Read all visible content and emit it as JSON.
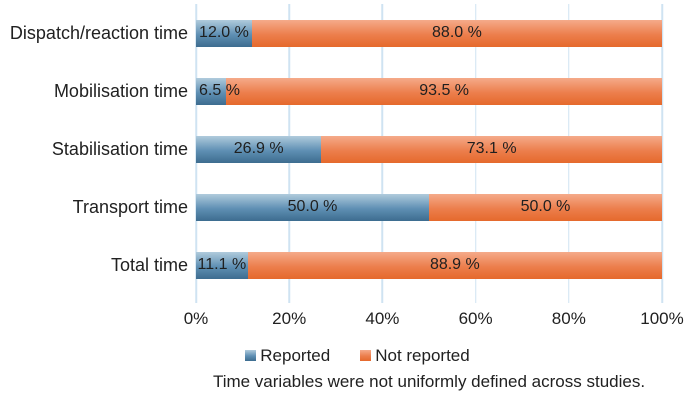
{
  "colors": {
    "blue_top": "#b0cbdc",
    "blue_mid": "#5e8fb3",
    "blue_bottom": "#3d6c8f",
    "orange_top": "#f5aa8a",
    "orange_mid": "#ec7e4c",
    "orange_bottom": "#e5692c",
    "gridline": "#cfe3f2",
    "text": "#212121"
  },
  "chart_data": {
    "type": "bar",
    "orientation": "horizontal",
    "stacked": true,
    "title": "",
    "categories": [
      "Dispatch/reaction time",
      "Mobilisation time",
      "Stabilisation time",
      "Transport time",
      "Total time"
    ],
    "series": [
      {
        "name": "Reported",
        "color": "#5e8fb3",
        "values": [
          12.0,
          6.5,
          26.9,
          50.0,
          11.1
        ],
        "labels": [
          "12.0 %",
          "6.5 %",
          "26.9 %",
          "50.0 %",
          "11.1 %"
        ]
      },
      {
        "name": "Not reported",
        "color": "#e5692c",
        "values": [
          88.0,
          93.5,
          73.1,
          50.0,
          88.9
        ],
        "labels": [
          "88.0 %",
          "93.5 %",
          "73.1 %",
          "50.0 %",
          "88.9 %"
        ]
      }
    ],
    "x_ticks": [
      "0%",
      "20%",
      "40%",
      "60%",
      "80%",
      "100%"
    ],
    "xlim": [
      0,
      100
    ],
    "grid": "vertical light-blue lines at every 20%",
    "legend_position": "bottom"
  },
  "caption": "Time variables were not uniformly defined across studies."
}
